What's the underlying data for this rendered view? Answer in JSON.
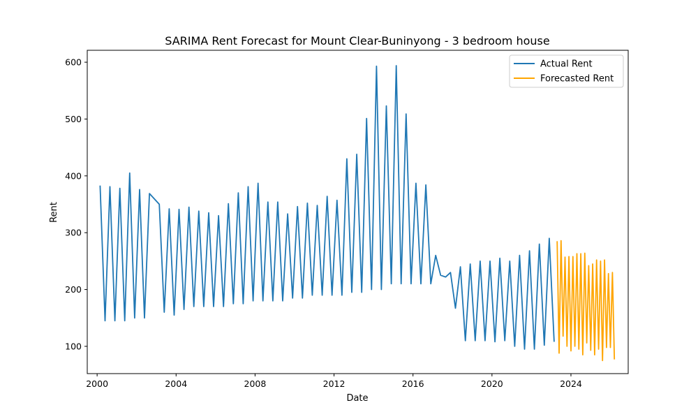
{
  "chart_data": {
    "type": "line",
    "title": "SARIMA Rent Forecast for Mount Clear-Buninyong - 3 bedroom house",
    "xlabel": "Date",
    "ylabel": "Rent",
    "xlim": [
      1999.5,
      2026.9
    ],
    "ylim": [
      52,
      621
    ],
    "xticks": [
      2000,
      2004,
      2008,
      2012,
      2016,
      2020,
      2024
    ],
    "xtick_labels": [
      "2000",
      "2004",
      "2008",
      "2012",
      "2016",
      "2020",
      "2024"
    ],
    "yticks": [
      100,
      200,
      300,
      400,
      500,
      600
    ],
    "ytick_labels": [
      "100",
      "200",
      "300",
      "400",
      "500",
      "600"
    ],
    "grid": false,
    "legend_position": "top-right",
    "series": [
      {
        "name": "Actual Rent",
        "color": "#1f77b4",
        "x": [
          2000.15,
          2000.4,
          2000.65,
          2000.9,
          2001.15,
          2001.4,
          2001.65,
          2001.9,
          2002.15,
          2002.4,
          2002.65,
          2003.15,
          2003.4,
          2003.65,
          2003.9,
          2004.15,
          2004.4,
          2004.65,
          2004.9,
          2005.15,
          2005.4,
          2005.65,
          2005.9,
          2006.15,
          2006.4,
          2006.65,
          2006.9,
          2007.15,
          2007.4,
          2007.65,
          2007.9,
          2008.15,
          2008.4,
          2008.65,
          2008.9,
          2009.15,
          2009.4,
          2009.65,
          2009.9,
          2010.15,
          2010.4,
          2010.65,
          2010.9,
          2011.15,
          2011.4,
          2011.65,
          2011.9,
          2012.15,
          2012.4,
          2012.65,
          2012.9,
          2013.15,
          2013.4,
          2013.65,
          2013.9,
          2014.15,
          2014.4,
          2014.65,
          2014.9,
          2015.15,
          2015.4,
          2015.65,
          2015.9,
          2016.15,
          2016.4,
          2016.65,
          2016.9,
          2017.15,
          2017.4,
          2017.65,
          2017.9,
          2018.15,
          2018.4,
          2018.65,
          2018.9,
          2019.15,
          2019.4,
          2019.65,
          2019.9,
          2020.15,
          2020.4,
          2020.65,
          2020.9,
          2021.15,
          2021.4,
          2021.65,
          2021.9,
          2022.15,
          2022.4,
          2022.65,
          2022.9,
          2023.15
        ],
        "y": [
          383,
          145,
          381,
          145,
          378,
          145,
          405,
          150,
          376,
          150,
          369,
          350,
          160,
          342,
          155,
          341,
          165,
          345,
          170,
          338,
          170,
          335,
          170,
          330,
          170,
          351,
          175,
          370,
          175,
          381,
          180,
          387,
          180,
          354,
          180,
          354,
          180,
          333,
          185,
          346,
          185,
          352,
          190,
          348,
          190,
          364,
          190,
          357,
          190,
          430,
          195,
          438,
          195,
          501,
          200,
          593,
          200,
          523,
          210,
          594,
          210,
          509,
          210,
          387,
          210,
          384,
          210,
          260,
          225,
          222,
          230,
          167,
          240,
          110,
          245,
          110,
          250,
          110,
          250,
          108,
          255,
          110,
          250,
          100,
          260,
          95,
          268,
          95,
          280,
          102,
          290,
          108
        ]
      },
      {
        "name": "Forecasted Rent",
        "color": "#ffa500",
        "x": [
          2023.3,
          2023.4,
          2023.5,
          2023.6,
          2023.7,
          2023.8,
          2023.9,
          2024.0,
          2024.1,
          2024.2,
          2024.3,
          2024.4,
          2024.5,
          2024.6,
          2024.7,
          2024.8,
          2024.9,
          2025.0,
          2025.1,
          2025.2,
          2025.3,
          2025.4,
          2025.5,
          2025.6,
          2025.7,
          2025.8,
          2025.9,
          2026.0,
          2026.1,
          2026.2
        ],
        "y": [
          285,
          88,
          286,
          118,
          257,
          100,
          258,
          92,
          258,
          100,
          263,
          95,
          263,
          85,
          264,
          106,
          242,
          93,
          245,
          85,
          252,
          95,
          250,
          75,
          252,
          98,
          228,
          98,
          230,
          77
        ]
      }
    ]
  }
}
